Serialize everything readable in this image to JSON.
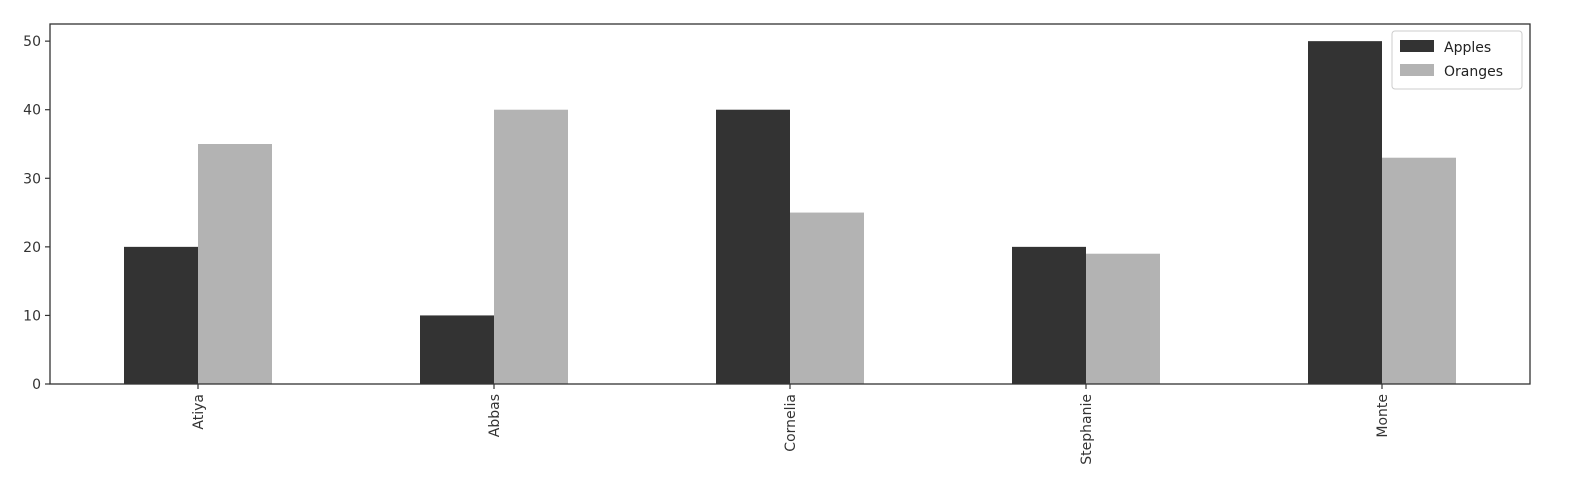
{
  "chart_data": {
    "type": "bar",
    "title": "",
    "xlabel": "",
    "ylabel": "",
    "categories": [
      "Atiya",
      "Abbas",
      "Cornelia",
      "Stephanie",
      "Monte"
    ],
    "series": [
      {
        "name": "Apples",
        "values": [
          20,
          10,
          40,
          20,
          50
        ],
        "color": "#333333"
      },
      {
        "name": "Oranges",
        "values": [
          35,
          40,
          25,
          19,
          33
        ],
        "color": "#b3b3b3"
      }
    ],
    "ylim": [
      0,
      52.5
    ],
    "yticks": [
      0,
      10,
      20,
      30,
      40,
      50
    ],
    "xtick_rotation": -90,
    "grid": false,
    "legend": "top-right"
  }
}
